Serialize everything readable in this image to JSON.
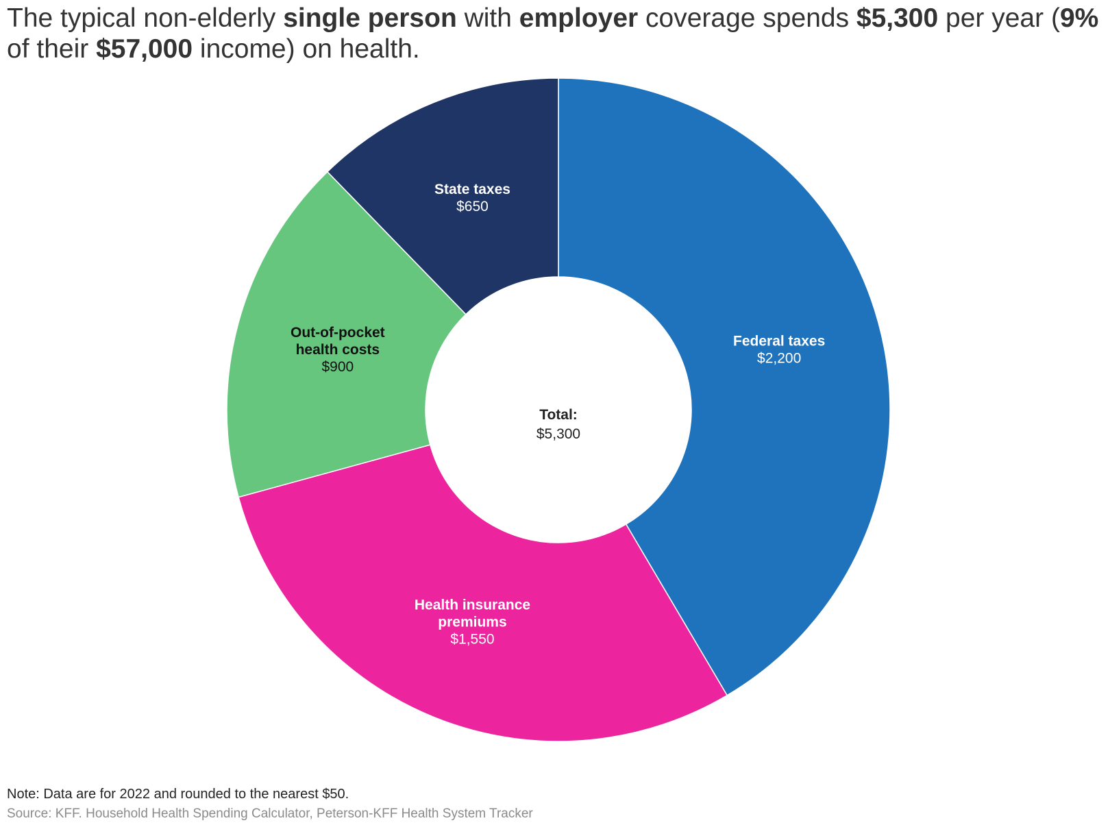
{
  "title_parts": [
    {
      "text": "The typical non-elderly ",
      "bold": false
    },
    {
      "text": "single person",
      "bold": true
    },
    {
      "text": " with ",
      "bold": false
    },
    {
      "text": "employer",
      "bold": true
    },
    {
      "text": " coverage spends ",
      "bold": false
    },
    {
      "text": "$5,300",
      "bold": true
    },
    {
      "text": " per year (",
      "bold": false
    },
    {
      "text": "9%",
      "bold": true
    },
    {
      "text": " of their ",
      "bold": false
    },
    {
      "text": "$57,000",
      "bold": true
    },
    {
      "text": " income) on health.",
      "bold": false
    }
  ],
  "chart_data": {
    "type": "pie",
    "donut": true,
    "start": "12 o'clock",
    "direction": "clockwise",
    "slices": [
      {
        "label": "Federal taxes",
        "value": 2200,
        "value_label": "$2,200",
        "color": "#1f73bd",
        "label_color": "#ffffff"
      },
      {
        "label": "Health insurance premiums",
        "label_lines": [
          "Health insurance",
          "premiums"
        ],
        "value": 1550,
        "value_label": "$1,550",
        "color": "#ec259f",
        "label_color": "#ffffff"
      },
      {
        "label": "Out-of-pocket health costs",
        "label_lines": [
          "Out-of-pocket",
          "health costs"
        ],
        "value": 900,
        "value_label": "$900",
        "color": "#66c67e",
        "label_color": "#111111"
      },
      {
        "label": "State taxes",
        "value": 650,
        "value_label": "$650",
        "color": "#1f3566",
        "label_color": "#ffffff"
      }
    ],
    "center_label": "Total:",
    "center_value": "$5,300"
  },
  "footer": {
    "note": "Note: Data are for 2022 and rounded to the nearest $50.",
    "source": "Source: KFF. Household Health Spending Calculator, Peterson-KFF Health System Tracker"
  }
}
